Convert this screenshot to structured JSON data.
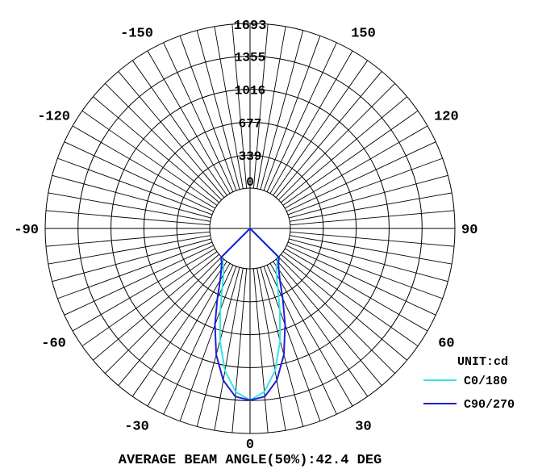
{
  "chart_data": {
    "type": "polar",
    "title": "",
    "unit_label": "UNIT:cd",
    "footer": "AVERAGE BEAM ANGLE(50%):42.4 DEG",
    "radial_max": 1693,
    "radial_ticks": [
      "0",
      "339",
      "677",
      "1016",
      "1355",
      "1693"
    ],
    "radial_tick_values": [
      0,
      339,
      677,
      1016,
      1355,
      1693
    ],
    "angle_labels": [
      {
        "angle": 0,
        "text": "0"
      },
      {
        "angle": 30,
        "text": "30"
      },
      {
        "angle": 60,
        "text": "60"
      },
      {
        "angle": 90,
        "text": "90"
      },
      {
        "angle": 120,
        "text": "120"
      },
      {
        "angle": 150,
        "text": "150"
      },
      {
        "angle": 180,
        "text": "1693"
      },
      {
        "angle": -30,
        "text": "-30"
      },
      {
        "angle": -60,
        "text": "-60"
      },
      {
        "angle": -90,
        "text": "-90"
      },
      {
        "angle": -120,
        "text": "-120"
      },
      {
        "angle": -150,
        "text": "-150"
      }
    ],
    "grid": true,
    "legend_position": "bottom-right",
    "series": [
      {
        "name": "C0/180",
        "color": "#33e6e6",
        "angles": [
          -90,
          -80,
          -70,
          -60,
          -50,
          -45,
          -40,
          -35,
          -30,
          -25,
          -20,
          -15,
          -10,
          -5,
          0,
          5,
          10,
          15,
          20,
          25,
          30,
          35,
          40,
          45,
          50,
          60,
          70,
          80,
          90
        ],
        "values": [
          0,
          0,
          0,
          0,
          0,
          5,
          25,
          60,
          130,
          260,
          480,
          780,
          1070,
          1270,
          1350,
          1270,
          1070,
          780,
          480,
          260,
          130,
          60,
          25,
          5,
          0,
          0,
          0,
          0,
          0
        ]
      },
      {
        "name": "C90/270",
        "color": "#1f1fd6",
        "angles": [
          -90,
          -80,
          -70,
          -60,
          -50,
          -45,
          -40,
          -35,
          -30,
          -25,
          -20,
          -15,
          -10,
          -5,
          0,
          5,
          10,
          15,
          20,
          25,
          30,
          35,
          40,
          45,
          50,
          60,
          70,
          80,
          90
        ],
        "values": [
          0,
          0,
          0,
          0,
          0,
          8,
          40,
          100,
          200,
          380,
          640,
          930,
          1170,
          1320,
          1350,
          1320,
          1170,
          930,
          640,
          380,
          200,
          100,
          40,
          8,
          0,
          0,
          0,
          0,
          0
        ]
      }
    ]
  }
}
